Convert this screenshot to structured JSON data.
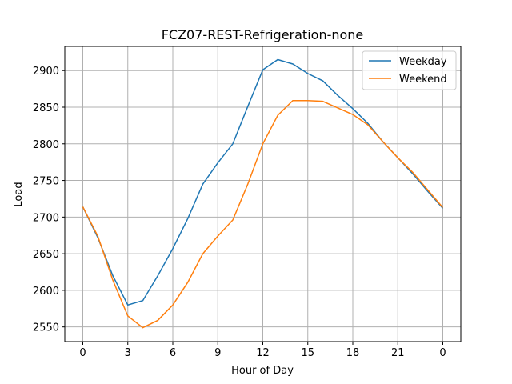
{
  "chart_data": {
    "type": "line",
    "title": "FCZ07-REST-Refrigeration-none",
    "xlabel": "Hour of Day",
    "ylabel": "Load",
    "x": [
      0,
      1,
      2,
      3,
      4,
      5,
      6,
      7,
      8,
      9,
      10,
      11,
      12,
      13,
      14,
      15,
      16,
      17,
      18,
      19,
      20,
      21,
      22,
      23,
      24
    ],
    "series": [
      {
        "name": "Weekday",
        "color": "#1f77b4",
        "values": [
          2714,
          2672,
          2620,
          2580,
          2586,
          2620,
          2657,
          2698,
          2745,
          2774,
          2800,
          2851,
          2901,
          2915,
          2909,
          2896,
          2886,
          2866,
          2848,
          2828,
          2803,
          2781,
          2759,
          2735,
          2712
        ]
      },
      {
        "name": "Weekend",
        "color": "#ff7f0e",
        "values": [
          2714,
          2674,
          2614,
          2565,
          2549,
          2559,
          2580,
          2611,
          2650,
          2674,
          2696,
          2745,
          2800,
          2839,
          2859,
          2859,
          2858,
          2849,
          2840,
          2826,
          2803,
          2781,
          2761,
          2737,
          2713
        ]
      }
    ],
    "xlim": [
      -1.2,
      25.2
    ],
    "ylim": [
      2530,
      2933
    ],
    "xticks": [
      0,
      3,
      6,
      9,
      12,
      15,
      18,
      21,
      {
        "value": 24,
        "label": "0"
      }
    ],
    "yticks": [
      2550,
      2600,
      2650,
      2700,
      2750,
      2800,
      2850,
      2900
    ],
    "grid": true,
    "legend": "upper-right"
  }
}
